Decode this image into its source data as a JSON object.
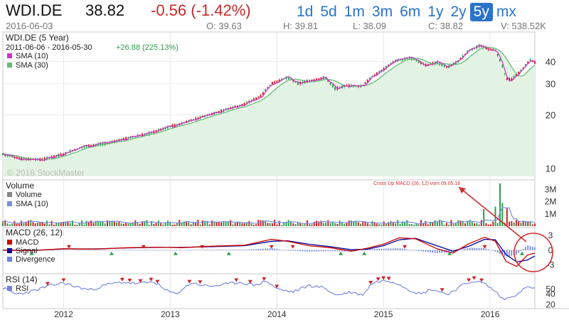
{
  "header": {
    "symbol": "WDI.DE",
    "price": "38.82",
    "change": "-0.56 (-1.42%)",
    "date": "2016-06-03",
    "open": "O: 39.63",
    "high": "H: 39.81",
    "low": "L: 38.09",
    "close": "C: 38.82",
    "volume": "V: 538.52K",
    "ranges": [
      "1d",
      "5d",
      "1m",
      "3m",
      "6m",
      "1y",
      "2y",
      "5y",
      "mx"
    ],
    "active_range": "5y"
  },
  "colors": {
    "up": "#2e9e4f",
    "down": "#cc2222",
    "sma10": "#cc33cc",
    "sma30": "#66bb77",
    "volume_sma": "#7b8fe0",
    "macd": "#cc0000",
    "signal": "#000099",
    "divergence": "#6f7fe8",
    "rsi": "#7080e0",
    "accent": "#2a73c9",
    "annotation": "#d32f2f"
  },
  "watermark": "© 2016 StockMaster",
  "chart_data": [
    {
      "type": "candlestick",
      "title": "WDI.DE (5 Year)",
      "subtitle": "2011-06-06 - 2016-05-30",
      "summary_change": "+26.88 (225.13%)",
      "legend": [
        "SMA (10)",
        "SMA (30)"
      ],
      "y_scale": "log",
      "ylim": [
        9,
        52
      ],
      "y_ticks": [
        10,
        20,
        30,
        40
      ],
      "x_ticks": [
        "2012",
        "2013",
        "2014",
        "2015",
        "2016"
      ],
      "x_range": [
        2011.43,
        2016.42
      ],
      "close_path": [
        [
          2011.43,
          12.0
        ],
        [
          2011.6,
          11.3
        ],
        [
          2011.8,
          11.2
        ],
        [
          2012.0,
          12.0
        ],
        [
          2012.2,
          13.3
        ],
        [
          2012.4,
          13.8
        ],
        [
          2012.6,
          14.8
        ],
        [
          2012.8,
          15.7
        ],
        [
          2013.0,
          17.2
        ],
        [
          2013.1,
          17.8
        ],
        [
          2013.3,
          19.5
        ],
        [
          2013.5,
          21.2
        ],
        [
          2013.7,
          23.0
        ],
        [
          2013.85,
          25.5
        ],
        [
          2013.95,
          30.0
        ],
        [
          2014.1,
          32.5
        ],
        [
          2014.2,
          30.0
        ],
        [
          2014.3,
          31.0
        ],
        [
          2014.45,
          32.5
        ],
        [
          2014.55,
          28.0
        ],
        [
          2014.65,
          29.2
        ],
        [
          2014.8,
          29.0
        ],
        [
          2014.9,
          33.0
        ],
        [
          2015.0,
          36.0
        ],
        [
          2015.1,
          40.0
        ],
        [
          2015.25,
          42.0
        ],
        [
          2015.4,
          38.0
        ],
        [
          2015.5,
          39.5
        ],
        [
          2015.6,
          37.0
        ],
        [
          2015.7,
          40.0
        ],
        [
          2015.8,
          46.0
        ],
        [
          2015.9,
          49.0
        ],
        [
          2016.0,
          47.0
        ],
        [
          2016.05,
          46.0
        ],
        [
          2016.1,
          40.0
        ],
        [
          2016.15,
          32.0
        ],
        [
          2016.2,
          31.5
        ],
        [
          2016.3,
          36.0
        ],
        [
          2016.38,
          41.0
        ],
        [
          2016.42,
          39.5
        ]
      ]
    },
    {
      "type": "bar",
      "title": "Volume",
      "legend": [
        "Volume",
        "SMA (10)"
      ],
      "y_ticks_labels": [
        "1M",
        "2M",
        "3M"
      ],
      "y_ticks": [
        1000000,
        2000000,
        3000000
      ],
      "ylim": [
        0,
        3500000
      ],
      "spikes": [
        [
          2015.95,
          1400000
        ],
        [
          2016.05,
          1600000
        ],
        [
          2016.1,
          3500000
        ],
        [
          2016.12,
          1900000
        ],
        [
          2016.15,
          1500000
        ]
      ],
      "baseline_volume": 350000
    },
    {
      "type": "line",
      "title": "MACD (26, 12)",
      "legend": [
        "MACD",
        "Signal",
        "Divergence"
      ],
      "y_ticks": [
        3,
        0,
        -3
      ],
      "ylim": [
        -4.5,
        4
      ],
      "annotation": "Cross Up MACD (26, 12) vom 09.05.16",
      "macd_path": [
        [
          2011.43,
          0.0
        ],
        [
          2011.7,
          -0.1
        ],
        [
          2012.0,
          0.3
        ],
        [
          2012.3,
          0.2
        ],
        [
          2012.6,
          0.5
        ],
        [
          2012.9,
          0.6
        ],
        [
          2013.1,
          0.5
        ],
        [
          2013.4,
          0.8
        ],
        [
          2013.7,
          1.0
        ],
        [
          2013.95,
          2.2
        ],
        [
          2014.1,
          1.8
        ],
        [
          2014.3,
          0.9
        ],
        [
          2014.5,
          0.5
        ],
        [
          2014.7,
          -0.2
        ],
        [
          2014.85,
          0.4
        ],
        [
          2015.0,
          1.2
        ],
        [
          2015.15,
          2.5
        ],
        [
          2015.3,
          2.3
        ],
        [
          2015.5,
          0.3
        ],
        [
          2015.65,
          -0.6
        ],
        [
          2015.8,
          1.3
        ],
        [
          2015.95,
          2.6
        ],
        [
          2016.05,
          1.8
        ],
        [
          2016.15,
          -2.3
        ],
        [
          2016.25,
          -3.3
        ],
        [
          2016.35,
          -1.0
        ],
        [
          2016.42,
          -0.6
        ]
      ],
      "signal_path": [
        [
          2011.43,
          0.0
        ],
        [
          2011.7,
          -0.05
        ],
        [
          2012.0,
          0.25
        ],
        [
          2012.3,
          0.25
        ],
        [
          2012.6,
          0.45
        ],
        [
          2012.9,
          0.55
        ],
        [
          2013.1,
          0.55
        ],
        [
          2013.4,
          0.7
        ],
        [
          2013.7,
          0.9
        ],
        [
          2013.95,
          1.8
        ],
        [
          2014.1,
          1.9
        ],
        [
          2014.3,
          1.2
        ],
        [
          2014.5,
          0.7
        ],
        [
          2014.7,
          0.1
        ],
        [
          2014.85,
          0.2
        ],
        [
          2015.0,
          0.9
        ],
        [
          2015.15,
          2.1
        ],
        [
          2015.3,
          2.4
        ],
        [
          2015.5,
          0.9
        ],
        [
          2015.65,
          -0.2
        ],
        [
          2015.8,
          0.8
        ],
        [
          2015.95,
          2.2
        ],
        [
          2016.05,
          2.1
        ],
        [
          2016.15,
          -0.9
        ],
        [
          2016.25,
          -2.4
        ],
        [
          2016.35,
          -2.0
        ],
        [
          2016.42,
          -1.2
        ]
      ]
    },
    {
      "type": "line",
      "title": "RSI (14)",
      "legend": [
        "RSI"
      ],
      "y_ticks": [
        50,
        40,
        20
      ],
      "ylim": [
        15,
        75
      ],
      "rsi_path": [
        [
          2011.43,
          52
        ],
        [
          2011.55,
          40
        ],
        [
          2011.7,
          45
        ],
        [
          2011.85,
          55
        ],
        [
          2012.0,
          62
        ],
        [
          2012.1,
          55
        ],
        [
          2012.25,
          48
        ],
        [
          2012.4,
          58
        ],
        [
          2012.55,
          63
        ],
        [
          2012.7,
          60
        ],
        [
          2012.85,
          64
        ],
        [
          2012.95,
          48
        ],
        [
          2013.05,
          40
        ],
        [
          2013.2,
          62
        ],
        [
          2013.35,
          55
        ],
        [
          2013.5,
          58
        ],
        [
          2013.65,
          63
        ],
        [
          2013.8,
          57
        ],
        [
          2013.9,
          66
        ],
        [
          2014.0,
          50
        ],
        [
          2014.15,
          44
        ],
        [
          2014.3,
          57
        ],
        [
          2014.45,
          52
        ],
        [
          2014.55,
          38
        ],
        [
          2014.7,
          44
        ],
        [
          2014.8,
          38
        ],
        [
          2014.9,
          62
        ],
        [
          2015.0,
          66
        ],
        [
          2015.1,
          64
        ],
        [
          2015.25,
          48
        ],
        [
          2015.35,
          40
        ],
        [
          2015.45,
          50
        ],
        [
          2015.6,
          40
        ],
        [
          2015.75,
          58
        ],
        [
          2015.85,
          66
        ],
        [
          2015.95,
          60
        ],
        [
          2016.05,
          45
        ],
        [
          2016.12,
          30
        ],
        [
          2016.2,
          34
        ],
        [
          2016.3,
          48
        ],
        [
          2016.38,
          55
        ],
        [
          2016.42,
          50
        ]
      ]
    }
  ]
}
